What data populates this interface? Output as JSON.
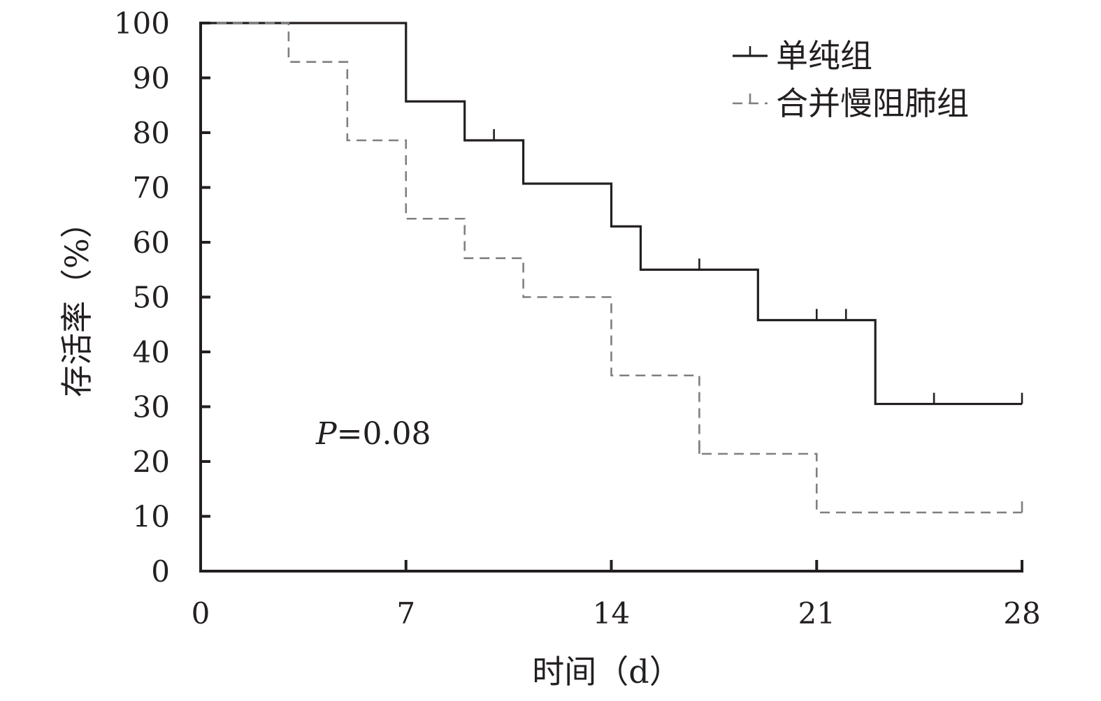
{
  "chart_data": {
    "type": "line",
    "step": true,
    "xlabel": "时间（d）",
    "ylabel": "存活率（%）",
    "xlim": [
      0,
      28
    ],
    "ylim": [
      0,
      100
    ],
    "x_ticks": [
      0,
      7,
      14,
      21,
      28
    ],
    "y_ticks": [
      0,
      10,
      20,
      30,
      40,
      50,
      60,
      70,
      80,
      90,
      100
    ],
    "legend_position": "top-right",
    "grid": false,
    "annotation": {
      "italic": "P",
      "text": "=0.08"
    },
    "series": [
      {
        "name": "单纯组",
        "style": "solid",
        "color": "#231f20",
        "steps": [
          {
            "x": 0,
            "y": 100
          },
          {
            "x": 7,
            "y": 85.7
          },
          {
            "x": 9,
            "y": 78.6
          },
          {
            "x": 11,
            "y": 70.7
          },
          {
            "x": 14,
            "y": 62.9
          },
          {
            "x": 15,
            "y": 55.0
          },
          {
            "x": 19,
            "y": 45.8
          },
          {
            "x": 23,
            "y": 30.5
          }
        ],
        "censored": [
          10,
          17,
          21,
          22,
          25,
          28
        ]
      },
      {
        "name": "合并慢阻肺组",
        "style": "dashed",
        "color": "#7f7f7f",
        "steps": [
          {
            "x": 0,
            "y": 100
          },
          {
            "x": 3,
            "y": 92.9
          },
          {
            "x": 5,
            "y": 78.6
          },
          {
            "x": 7,
            "y": 64.3
          },
          {
            "x": 9,
            "y": 57.1
          },
          {
            "x": 11,
            "y": 50.0
          },
          {
            "x": 14,
            "y": 35.7
          },
          {
            "x": 17,
            "y": 21.4
          },
          {
            "x": 21,
            "y": 10.7
          }
        ],
        "censored": [
          17,
          28
        ]
      }
    ]
  }
}
